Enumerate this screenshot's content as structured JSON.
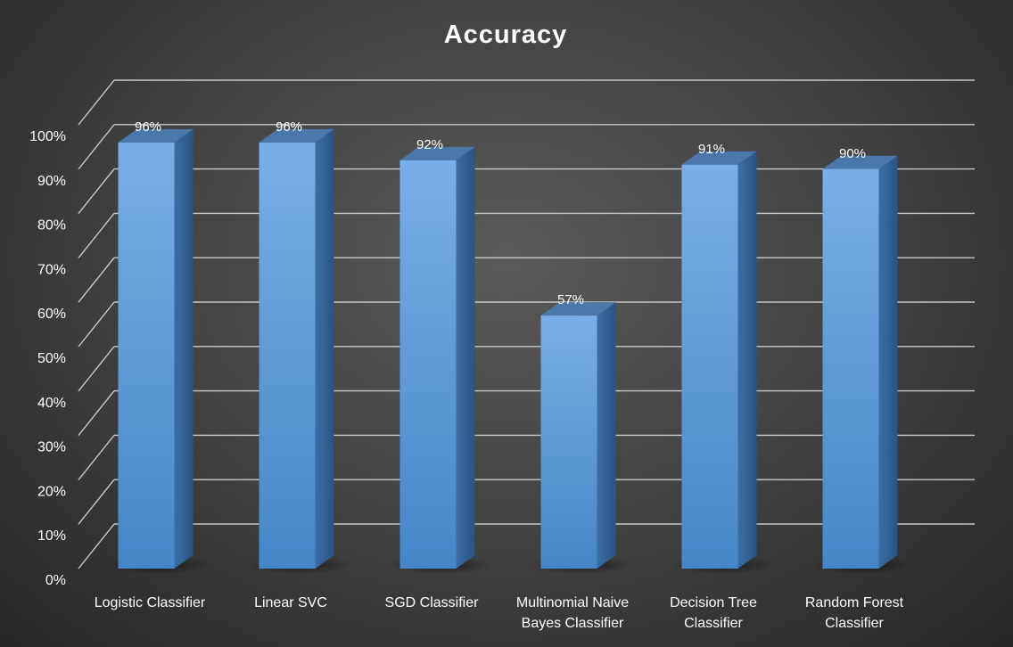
{
  "chart_data": {
    "type": "bar",
    "title": "Accuracy",
    "categories": [
      [
        "Logistic Classifier"
      ],
      [
        "Linear SVC"
      ],
      [
        "SGD Classifier"
      ],
      [
        "Multinomial Naive",
        "Bayes Classifier"
      ],
      [
        "Decision Tree",
        "Classifier"
      ],
      [
        "Random Forest",
        "Classifier"
      ]
    ],
    "values": [
      96,
      96,
      92,
      57,
      91,
      90
    ],
    "data_labels": [
      "96%",
      "96%",
      "92%",
      "57%",
      "91%",
      "90%"
    ],
    "yticks": [
      "0%",
      "10%",
      "20%",
      "30%",
      "40%",
      "50%",
      "60%",
      "70%",
      "80%",
      "90%",
      "100%"
    ],
    "ylim": [
      0,
      100
    ],
    "grid": true,
    "style": "3d-columns",
    "colors": {
      "bar_front_top": "#7aaee6",
      "bar_front_bottom": "#4686c8",
      "bar_side": "#2f5f92",
      "bar_top": "#4a78ab",
      "grid": "#c8c8c8",
      "text": "#ffffff"
    }
  }
}
